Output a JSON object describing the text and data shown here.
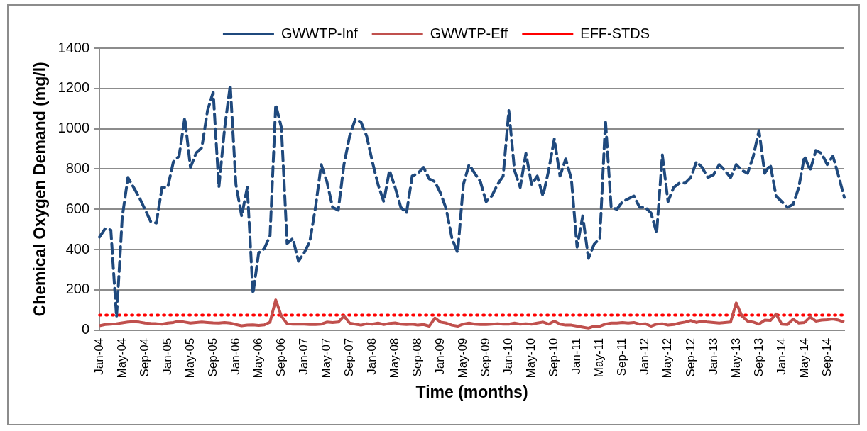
{
  "chart_data": {
    "type": "line",
    "xlabel": "Time (months)",
    "ylabel": "Chemical Oxygen Demand (mg/l)",
    "categories": [
      "Jan-04",
      null,
      null,
      null,
      "May-04",
      null,
      null,
      null,
      "Sep-04",
      null,
      null,
      null,
      "Jan-05",
      null,
      null,
      null,
      "May-05",
      null,
      null,
      null,
      "Sep-05",
      null,
      null,
      null,
      "Jan-06",
      null,
      null,
      null,
      "May-06",
      null,
      null,
      null,
      "Sep-06",
      null,
      null,
      null,
      "Jan-07",
      null,
      null,
      null,
      "May-07",
      null,
      null,
      null,
      "Sep-07",
      null,
      null,
      null,
      "Jan-08",
      null,
      null,
      null,
      "May-08",
      null,
      null,
      null,
      "Sep-08",
      null,
      null,
      null,
      "Jan-09",
      null,
      null,
      null,
      "May-09",
      null,
      null,
      null,
      "Sep-09",
      null,
      null,
      null,
      "Jan-10",
      null,
      null,
      null,
      "May-10",
      null,
      null,
      null,
      "Sep-10",
      null,
      null,
      null,
      "Jan-11",
      null,
      null,
      null,
      "May-11",
      null,
      null,
      null,
      "Sep-11",
      null,
      null,
      null,
      "Jan-12",
      null,
      null,
      null,
      "May-12",
      null,
      null,
      null,
      "Sep-12",
      null,
      null,
      null,
      "Jan-13",
      null,
      null,
      null,
      "May-13",
      null,
      null,
      null,
      "Sep-13",
      null,
      null,
      null,
      "Jan-14",
      null,
      null,
      null,
      "May-14",
      null,
      null,
      null,
      "Sep-14",
      null,
      null,
      null
    ],
    "series": [
      {
        "name": "GWWTP-Inf",
        "color": "#1f497d",
        "line_style": "dashed",
        "values": [
          462,
          504,
          497,
          65,
          560,
          758,
          709,
          659,
          600,
          540,
          532,
          709,
          709,
          836,
          864,
          1055,
          808,
          880,
          906,
          1090,
          1182,
          709,
          1000,
          1217,
          723,
          567,
          709,
          180,
          384,
          405,
          469,
          1120,
          1005,
          430,
          455,
          342,
          384,
          440,
          610,
          822,
          737,
          610,
          596,
          822,
          963,
          1048,
          1033,
          963,
          836,
          723,
          638,
          793,
          709,
          610,
          582,
          765,
          779,
          808,
          751,
          737,
          680,
          600,
          455,
          385,
          723,
          822,
          779,
          737,
          638,
          666,
          723,
          765,
          1090,
          793,
          709,
          878,
          723,
          765,
          666,
          793,
          949,
          765,
          850,
          751,
          412,
          567,
          356,
          426,
          455,
          1040,
          610,
          600,
          638,
          652,
          666,
          610,
          610,
          582,
          483,
          870,
          638,
          709,
          730,
          730,
          758,
          836,
          808,
          758,
          772,
          822,
          793,
          758,
          822,
          793,
          779,
          864,
          991,
          779,
          822,
          666,
          638,
          610,
          624,
          709,
          864,
          793,
          892,
          878,
          822,
          864,
          765,
          659
        ]
      },
      {
        "name": "GWWTP-Eff",
        "color": "#c0504d",
        "line_style": "solid",
        "values": [
          22,
          28,
          30,
          32,
          36,
          40,
          42,
          40,
          35,
          33,
          32,
          30,
          35,
          38,
          45,
          40,
          35,
          38,
          40,
          38,
          36,
          35,
          38,
          35,
          28,
          22,
          25,
          26,
          24,
          26,
          40,
          150,
          70,
          32,
          30,
          30,
          30,
          28,
          28,
          30,
          40,
          38,
          40,
          70,
          35,
          30,
          25,
          32,
          30,
          35,
          28,
          33,
          36,
          30,
          28,
          30,
          25,
          28,
          20,
          60,
          40,
          35,
          25,
          20,
          30,
          35,
          30,
          28,
          28,
          30,
          32,
          30,
          30,
          35,
          30,
          32,
          30,
          35,
          40,
          30,
          45,
          30,
          25,
          25,
          20,
          15,
          10,
          20,
          20,
          30,
          35,
          35,
          38,
          35,
          38,
          30,
          32,
          20,
          30,
          32,
          25,
          28,
          35,
          40,
          48,
          38,
          45,
          40,
          38,
          35,
          38,
          40,
          135,
          70,
          45,
          40,
          30,
          50,
          48,
          80,
          30,
          28,
          55,
          35,
          38,
          65,
          45,
          50,
          52,
          55,
          50,
          40
        ]
      },
      {
        "name": "EFF-STDS",
        "color": "#ff0000",
        "line_style": "dotted",
        "values": [
          75,
          75,
          75,
          75,
          75,
          75,
          75,
          75,
          75,
          75,
          75,
          75,
          75,
          75,
          75,
          75,
          75,
          75,
          75,
          75,
          75,
          75,
          75,
          75,
          75,
          75,
          75,
          75,
          75,
          75,
          75,
          75,
          75,
          75,
          75,
          75,
          75,
          75,
          75,
          75,
          75,
          75,
          75,
          75,
          75,
          75,
          75,
          75,
          75,
          75,
          75,
          75,
          75,
          75,
          75,
          75,
          75,
          75,
          75,
          75,
          75,
          75,
          75,
          75,
          75,
          75,
          75,
          75,
          75,
          75,
          75,
          75,
          75,
          75,
          75,
          75,
          75,
          75,
          75,
          75,
          75,
          75,
          75,
          75,
          75,
          75,
          75,
          75,
          75,
          75,
          75,
          75,
          75,
          75,
          75,
          75,
          75,
          75,
          75,
          75,
          75,
          75,
          75,
          75,
          75,
          75,
          75,
          75,
          75,
          75,
          75,
          75,
          75,
          75,
          75,
          75,
          75,
          75,
          75,
          75,
          75,
          75,
          75,
          75,
          75,
          75,
          75,
          75,
          75,
          75,
          75,
          75
        ]
      }
    ],
    "ylim": [
      0,
      1400
    ],
    "yticks": [
      0,
      200,
      400,
      600,
      800,
      1000,
      1200,
      1400
    ],
    "grid": "y",
    "legend": "top",
    "marker": "none"
  }
}
